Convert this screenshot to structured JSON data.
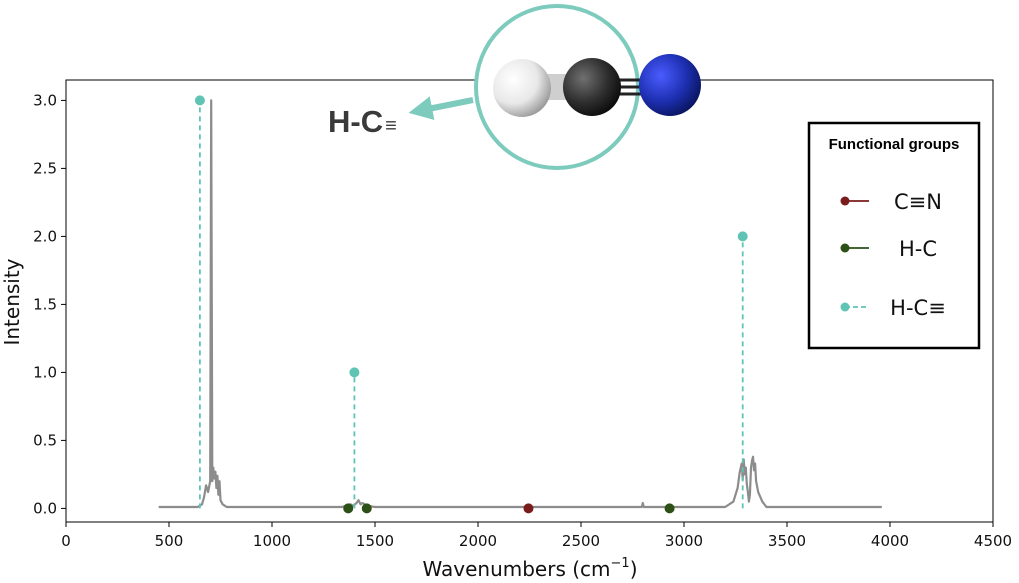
{
  "chart_data": {
    "type": "line",
    "title": "",
    "xlabel": "Wavenumbers (cm",
    "xlabel_sup": "−1",
    "xlabel_suffix": ")",
    "ylabel": "Intensity",
    "xlim": [
      0,
      4500
    ],
    "ylim": [
      -0.1,
      3.15
    ],
    "x_ticks": [
      0,
      500,
      1000,
      1500,
      2000,
      2500,
      3000,
      3500,
      4000,
      4500
    ],
    "y_ticks": [
      0.0,
      0.5,
      1.0,
      1.5,
      2.0,
      2.5,
      3.0
    ],
    "x_tick_labels": [
      "0",
      "500",
      "1000",
      "1500",
      "2000",
      "2500",
      "3000",
      "3500",
      "4000",
      "4500"
    ],
    "y_tick_labels": [
      "0.0",
      "0.5",
      "1.0",
      "1.5",
      "2.0",
      "2.5",
      "3.0"
    ],
    "grid": false,
    "spectrum": {
      "color": "#8c8c8c",
      "x": [
        450,
        640,
        660,
        670,
        680,
        690,
        700,
        705,
        710,
        715,
        720,
        725,
        730,
        735,
        740,
        745,
        750,
        760,
        780,
        800,
        1340,
        1360,
        1380,
        1395,
        1410,
        1420,
        1430,
        1440,
        1460,
        1500,
        2200,
        2795,
        2800,
        2805,
        3200,
        3240,
        3260,
        3270,
        3280,
        3285,
        3290,
        3295,
        3300,
        3305,
        3310,
        3315,
        3320,
        3325,
        3330,
        3335,
        3340,
        3345,
        3350,
        3360,
        3380,
        3400,
        3960
      ],
      "y": [
        0.01,
        0.01,
        0.03,
        0.08,
        0.17,
        0.12,
        0.2,
        3.0,
        0.2,
        0.3,
        0.22,
        0.27,
        0.15,
        0.24,
        0.1,
        0.2,
        0.06,
        0.03,
        0.01,
        0.01,
        0.01,
        0.02,
        0.03,
        0.02,
        0.04,
        0.06,
        0.03,
        0.04,
        0.02,
        0.01,
        0.01,
        0.01,
        0.04,
        0.01,
        0.01,
        0.05,
        0.15,
        0.26,
        0.33,
        0.21,
        0.36,
        0.25,
        0.3,
        0.18,
        0.12,
        0.05,
        0.1,
        0.3,
        0.35,
        0.38,
        0.28,
        0.33,
        0.2,
        0.12,
        0.05,
        0.01,
        0.01
      ]
    },
    "markers": [
      {
        "group": "H-C≡",
        "x": 650,
        "y": 3.0,
        "style": "dashed",
        "color": "#5fc4b4"
      },
      {
        "group": "H-C≡",
        "x": 1400,
        "y": 1.0,
        "style": "dashed",
        "color": "#5fc4b4"
      },
      {
        "group": "H-C≡",
        "x": 3285,
        "y": 2.0,
        "style": "dashed",
        "color": "#5fc4b4"
      },
      {
        "group": "H-C",
        "x": 1370,
        "y": 0.0,
        "style": "solid",
        "color": "#2d5016"
      },
      {
        "group": "H-C",
        "x": 1460,
        "y": 0.0,
        "style": "solid",
        "color": "#2d5016"
      },
      {
        "group": "H-C",
        "x": 2930,
        "y": 0.0,
        "style": "solid",
        "color": "#2d5016"
      },
      {
        "group": "C≡N",
        "x": 2245,
        "y": 0.0,
        "style": "solid",
        "color": "#7a1c1c"
      }
    ],
    "legend": {
      "title": "Functional groups",
      "position": "right",
      "entries": [
        {
          "label": "C≡N",
          "color": "#7a1c1c",
          "style": "solid"
        },
        {
          "label": "H-C",
          "color": "#2d5016",
          "style": "solid"
        },
        {
          "label": "H-C≡",
          "color": "#5fc4b4",
          "style": "dashed"
        }
      ]
    },
    "annotation": {
      "text": "H-C",
      "suffix": "≡",
      "atoms": [
        {
          "element": "H",
          "color": "#f2f2f2"
        },
        {
          "element": "C",
          "color": "#3a3a3a"
        },
        {
          "element": "N",
          "color": "#2233aa"
        }
      ],
      "ring_color": "#7ccbbd"
    }
  }
}
